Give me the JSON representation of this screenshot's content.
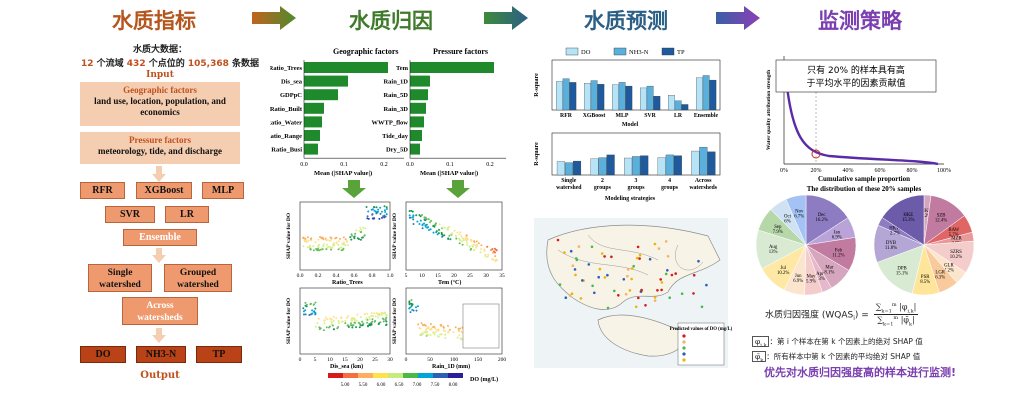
{
  "headers": {
    "h1": "水质指标",
    "h2": "水质归因",
    "h3": "水质预测",
    "h4": "监测策略"
  },
  "colors": {
    "h1": "#b5561e",
    "h2": "#3f7a2a",
    "h3": "#2b5f86",
    "h4": "#7b3fb0"
  },
  "left": {
    "bigdata_title": "水质大数据：",
    "n1": "12",
    "t1": " 个流域 ",
    "n2": "432",
    "t2": " 个点位的 ",
    "n3": "105,368",
    "t3": " 条数据",
    "input": "Input",
    "geo_title": "Geographic factors",
    "geo_desc": "land use, location, population, and economics",
    "press_title": "Pressure factors",
    "press_desc": "meteorology, tide, and discharge",
    "m_rfr": "RFR",
    "m_xgb": "XGBoost",
    "m_mlp": "MLP",
    "m_svr": "SVR",
    "m_lr": "LR",
    "ensemble": "Ensemble",
    "single": "Single watershed",
    "grouped": "Grouped watershed",
    "across": "Across watersheds",
    "o_do": "DO",
    "o_nh3": "NH3-N",
    "o_tp": "TP",
    "output": "Output"
  },
  "attribution": {
    "geo_title": "Geographic factors",
    "press_title": "Pressure factors",
    "xlabel": "Mean (|SHAP value|)",
    "geo_labels": [
      "Ratio_Trees",
      "Dis_sea",
      "GDPpC",
      "Ratio_Built",
      "Ratio_Water",
      "Ratio_Range",
      "Ratio_Busi"
    ],
    "press_labels": [
      "Tem",
      "Rain_1D",
      "Rain_5D",
      "Rain_3D",
      "WWTP_flow",
      "Tide_day",
      "Dry_5D"
    ],
    "ticks": [
      "0.0",
      "0.1",
      "0.2"
    ],
    "dep_ylabel": "SHAP value for DO",
    "dep1_x": "Ratio_Trees",
    "dep2_x": "Tem (°C)",
    "dep3_x": "Dis_sea (km)",
    "dep4_x": "Rain_1D (mm)",
    "colorbar_ticks": [
      "5.00",
      "5.50",
      "6.00",
      "6.50",
      "7.00",
      "7.50",
      "8.00"
    ],
    "colorbar_label": "DO (mg/L)"
  },
  "prediction": {
    "legend": [
      "DO",
      "NH3-N",
      "TP"
    ],
    "ylabel": "R-square",
    "top_xlabel": "Model",
    "models": [
      "RFR",
      "XGBoost",
      "MLP",
      "SVR",
      "LR",
      "Ensemble"
    ],
    "bottom_xlabel": "Modeling strategies",
    "strategies": [
      "Single watershed",
      "2 groups",
      "3 groups",
      "4 groups",
      "Across watersheds"
    ],
    "map_legend_title": "Predicted values of DO (mg/L)"
  },
  "strategy": {
    "annotation": "只有 20% 的样本具有高于平均水平的因素贡献值",
    "ylabel": "Water quality attribution strength",
    "xlabel": "Cumulative sample proportion",
    "xticks": [
      "0%",
      "20%",
      "40%",
      "60%",
      "80%",
      "100%"
    ],
    "dist_title": "The distribution of these 20% samples",
    "pie1": [
      {
        "label": "Dec",
        "pct": "16.2%"
      },
      {
        "label": "Jan",
        "pct": "6.9%"
      },
      {
        "label": "Feb",
        "pct": "11.2%"
      },
      {
        "label": "Mar",
        "pct": "8.1%"
      },
      {
        "label": "Apr",
        "pct": "3.3%"
      },
      {
        "label": "May",
        "pct": "5.9%"
      },
      {
        "label": "Jun",
        "pct": "6.9%"
      },
      {
        "label": "Jul",
        "pct": "10.2%"
      },
      {
        "label": "Aug",
        "pct": "13%"
      },
      {
        "label": "Sep",
        "pct": "7.9%"
      },
      {
        "label": "Oct",
        "pct": "6%"
      },
      {
        "label": "Nov",
        "pct": "6.7%"
      }
    ],
    "pie2": [
      {
        "label": "HKS",
        "pct": "2.2%"
      },
      {
        "label": "SZB",
        "pct": "12.4%"
      },
      {
        "label": "BAW",
        "pct": "5.7%"
      },
      {
        "label": "MZR",
        "pct": "2.8%"
      },
      {
        "label": "SZRS",
        "pct": "10.2%"
      },
      {
        "label": "GLR",
        "pct": "4.2%"
      },
      {
        "label": "LGR",
        "pct": "6.3%"
      },
      {
        "label": "PSR",
        "pct": "8.5%"
      },
      {
        "label": "DPB",
        "pct": "15.1%"
      },
      {
        "label": "DYB",
        "pct": "11.8%"
      },
      {
        "label": "HKW",
        "pct": "2.7%"
      },
      {
        "label": "HKE",
        "pct": "15.3%"
      }
    ],
    "formula_label": "水质归因强度 (WQAS",
    "formula_sub": "i",
    "formula_close": ") =",
    "note1": "：第 i 个样本在第 k 个因素上的绝对 SHAP 值",
    "note2": "：所有样本中第 k 个因素的平均绝对 SHAP 值",
    "conclusion": "优先对水质归因强度高的样本进行监测!"
  }
}
